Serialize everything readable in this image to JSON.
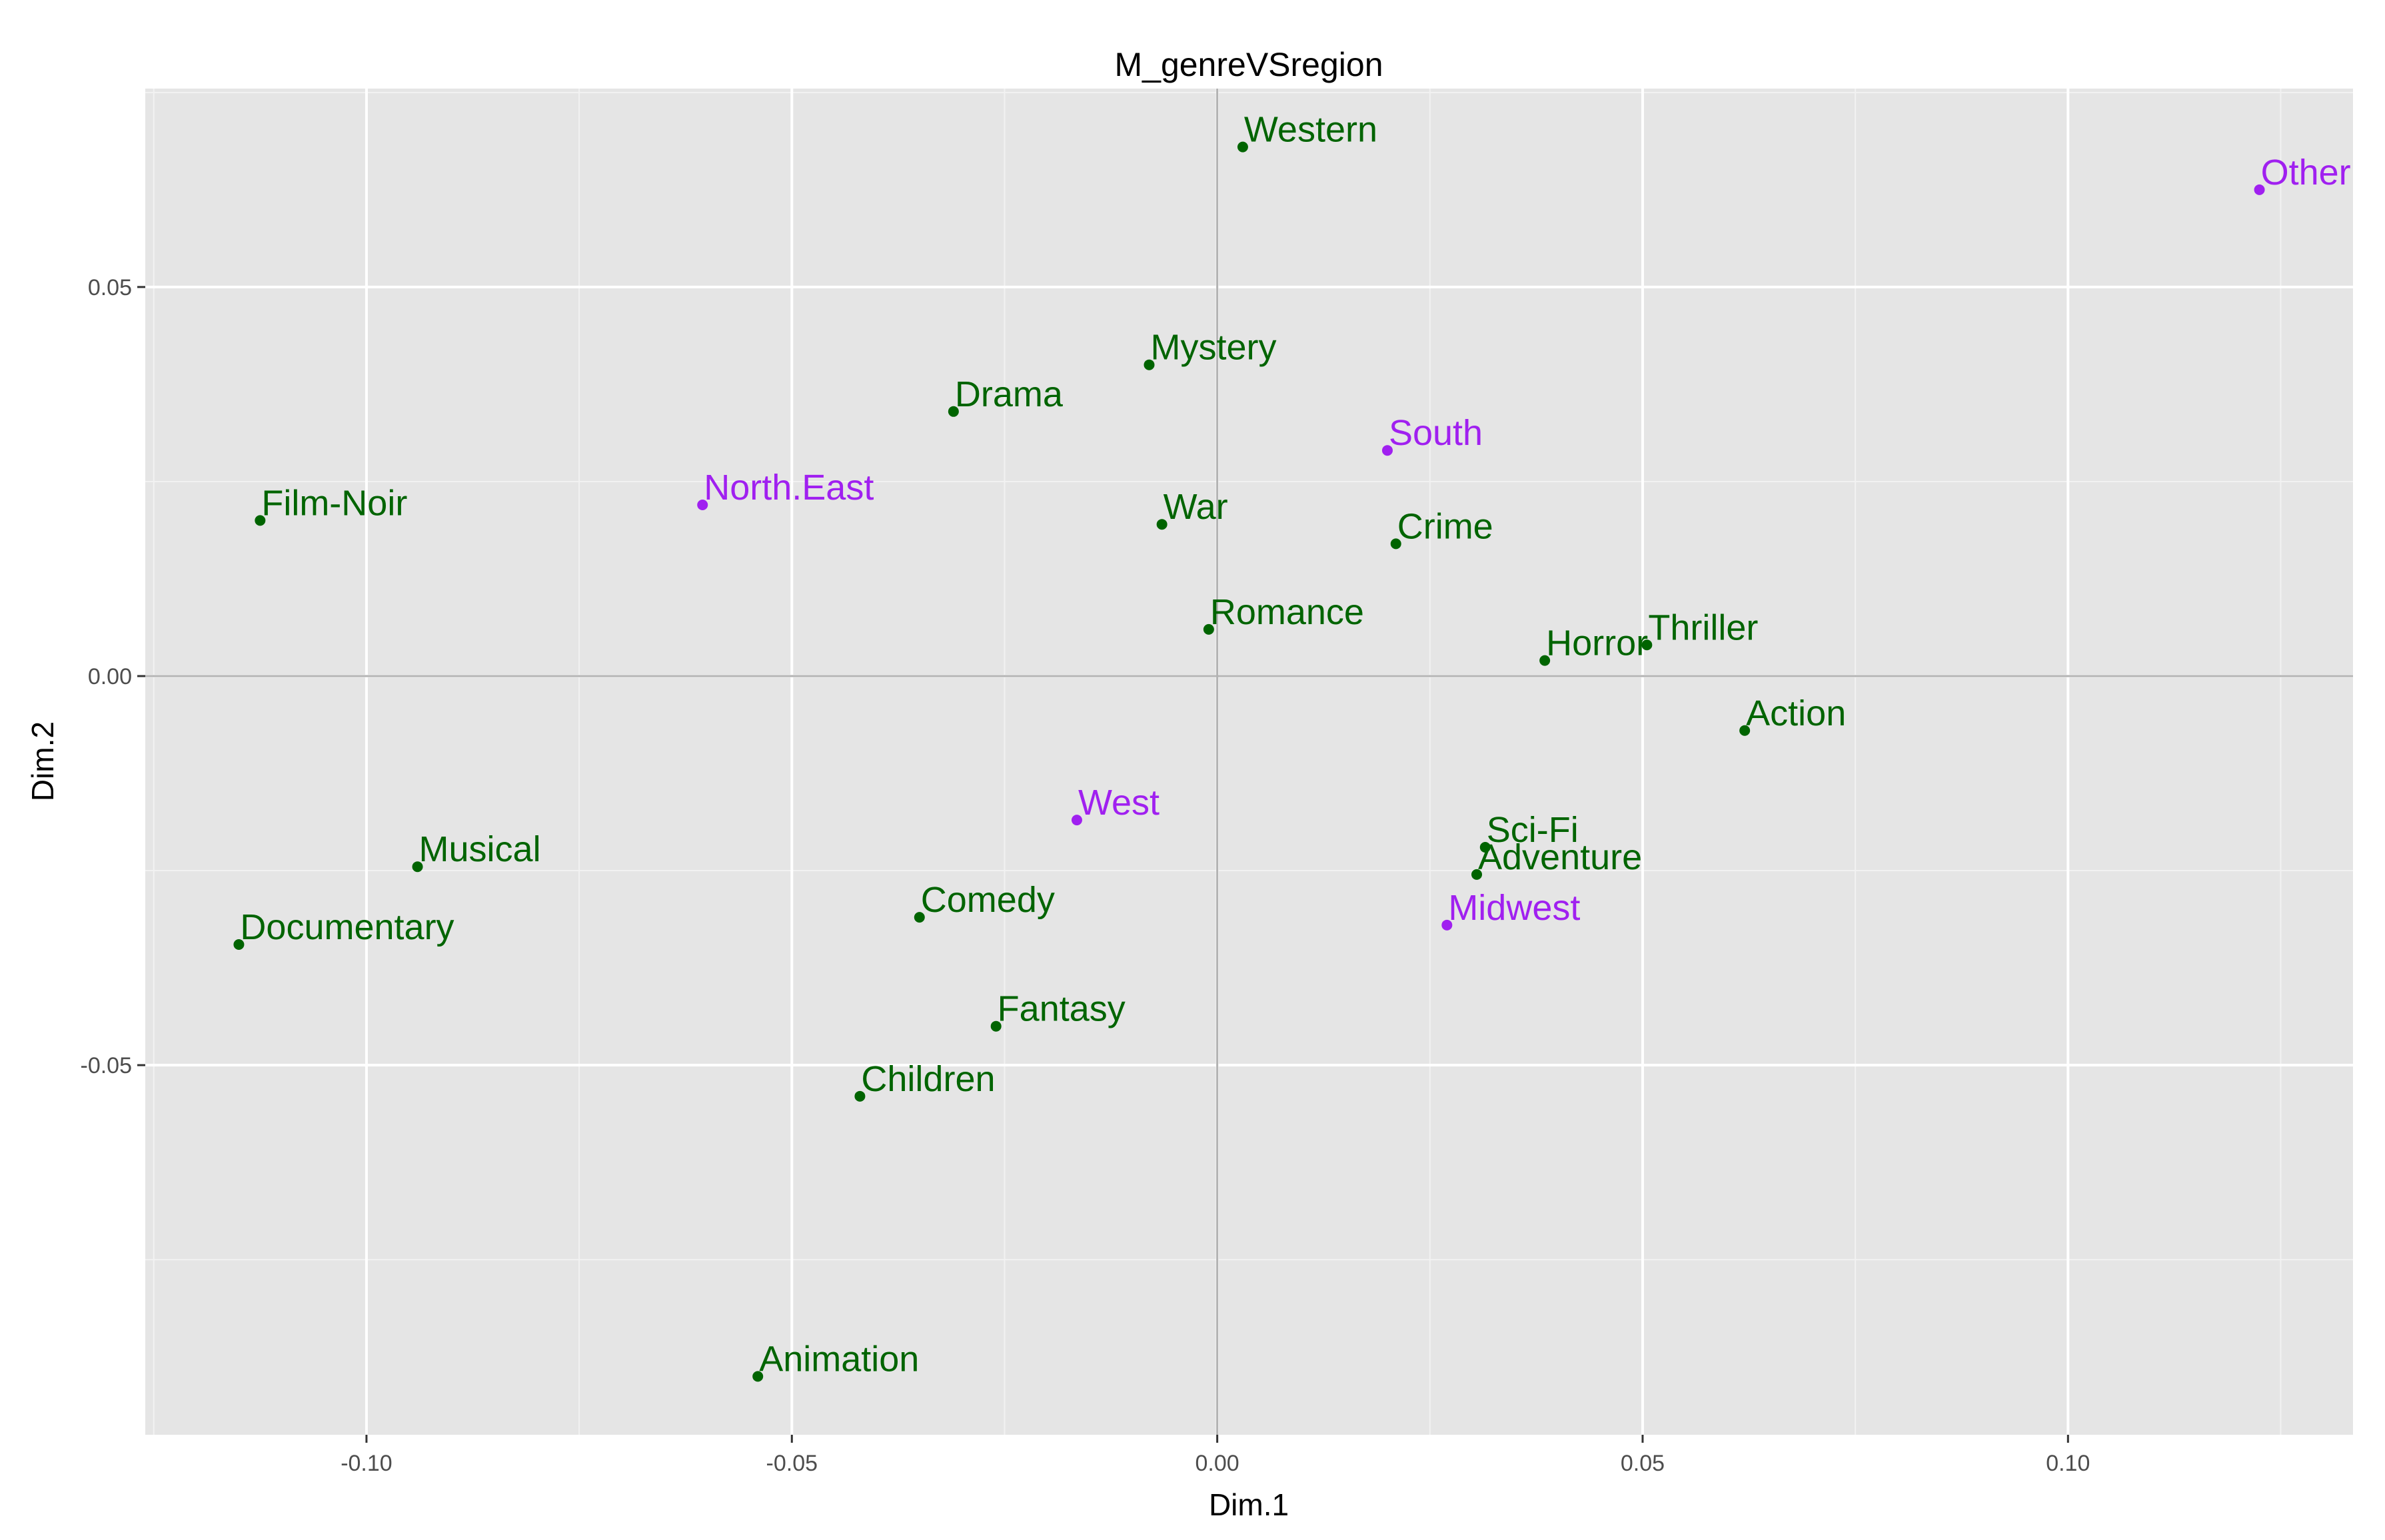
{
  "chart_data": {
    "type": "scatter",
    "title": "M_genreVSregion",
    "xlabel": "Dim.1",
    "ylabel": "Dim.2",
    "xlim": [
      -0.126,
      0.1335
    ],
    "ylim": [
      -0.0975,
      0.0755
    ],
    "x_ticks": [
      -0.1,
      -0.05,
      0.0,
      0.05,
      0.1
    ],
    "x_tick_labels": [
      "-0.10",
      "-0.05",
      "0.00",
      "0.05",
      "0.10"
    ],
    "y_ticks": [
      -0.05,
      0.0,
      0.05
    ],
    "y_tick_labels": [
      "-0.05",
      "0.00",
      "0.05"
    ],
    "grid": true,
    "reference_lines": {
      "x": 0,
      "y": 0
    },
    "colors": {
      "panel_bg": "#e5e5e5",
      "grid_major": "#ffffff",
      "grid_minor": "#f2f2f2",
      "reference_line": "#b3b3b3",
      "genre": "#006400",
      "region": "#a020f0"
    },
    "series": [
      {
        "group": "genre",
        "color": "#006400",
        "points": [
          {
            "label": "Western",
            "x": 0.003,
            "y": 0.068
          },
          {
            "label": "Mystery",
            "x": -0.008,
            "y": 0.04
          },
          {
            "label": "Drama",
            "x": -0.031,
            "y": 0.034
          },
          {
            "label": "Film-Noir",
            "x": -0.1125,
            "y": 0.02
          },
          {
            "label": "War",
            "x": -0.0065,
            "y": 0.0195
          },
          {
            "label": "Crime",
            "x": 0.021,
            "y": 0.017
          },
          {
            "label": "Romance",
            "x": -0.001,
            "y": 0.006
          },
          {
            "label": "Horror",
            "x": 0.0385,
            "y": 0.002
          },
          {
            "label": "Thriller",
            "x": 0.0505,
            "y": 0.004
          },
          {
            "label": "Action",
            "x": 0.062,
            "y": -0.007
          },
          {
            "label": "Sci-Fi",
            "x": 0.0315,
            "y": -0.022
          },
          {
            "label": "Adventure",
            "x": 0.0305,
            "y": -0.0255
          },
          {
            "label": "Musical",
            "x": -0.094,
            "y": -0.0245
          },
          {
            "label": "Documentary",
            "x": -0.115,
            "y": -0.0345
          },
          {
            "label": "Comedy",
            "x": -0.035,
            "y": -0.031
          },
          {
            "label": "Fantasy",
            "x": -0.026,
            "y": -0.045
          },
          {
            "label": "Children",
            "x": -0.042,
            "y": -0.054
          },
          {
            "label": "Animation",
            "x": -0.054,
            "y": -0.09
          }
        ]
      },
      {
        "group": "region",
        "color": "#a020f0",
        "points": [
          {
            "label": "Other",
            "x": 0.1225,
            "y": 0.0625
          },
          {
            "label": "South",
            "x": 0.02,
            "y": 0.029
          },
          {
            "label": "North.East",
            "x": -0.0605,
            "y": 0.022
          },
          {
            "label": "West",
            "x": -0.0165,
            "y": -0.0185
          },
          {
            "label": "Midwest",
            "x": 0.027,
            "y": -0.032
          }
        ]
      }
    ]
  }
}
